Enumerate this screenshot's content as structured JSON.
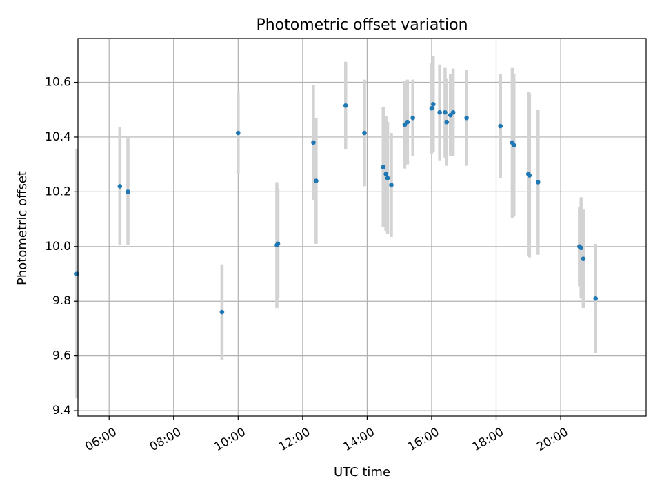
{
  "chart_data": {
    "type": "scatter",
    "title": "Photometric offset variation",
    "xlabel": "UTC time",
    "ylabel": "Photometric offset",
    "x_tick_labels": [
      "06:00",
      "08:00",
      "10:00",
      "12:00",
      "14:00",
      "16:00",
      "18:00",
      "20:00"
    ],
    "y_tick_labels": [
      "9.4",
      "9.6",
      "9.8",
      "10.0",
      "10.2",
      "10.4",
      "10.6"
    ],
    "xlim": [
      "05:02",
      "22:39"
    ],
    "ylim": [
      9.38,
      10.76
    ],
    "grid": true,
    "colors": {
      "marker": "#1f77b4",
      "errorbar": "#d3d3d3",
      "grid": "#b0b0b0"
    },
    "series": [
      {
        "points": [
          {
            "x": "05:00",
            "y": 9.9,
            "err": 0.455
          },
          {
            "x": "06:20",
            "y": 10.22,
            "err": 0.215
          },
          {
            "x": "06:35",
            "y": 10.2,
            "err": 0.195
          },
          {
            "x": "09:30",
            "y": 9.76,
            "err": 0.175
          },
          {
            "x": "10:00",
            "y": 10.415,
            "err": 0.15
          },
          {
            "x": "11:12",
            "y": 10.005,
            "err": 0.23
          },
          {
            "x": "11:14",
            "y": 10.01,
            "err": 0.2
          },
          {
            "x": "12:20",
            "y": 10.38,
            "err": 0.21
          },
          {
            "x": "12:25",
            "y": 10.24,
            "err": 0.23
          },
          {
            "x": "13:20",
            "y": 10.515,
            "err": 0.16
          },
          {
            "x": "13:55",
            "y": 10.415,
            "err": 0.195
          },
          {
            "x": "14:30",
            "y": 10.29,
            "err": 0.22
          },
          {
            "x": "14:35",
            "y": 10.265,
            "err": 0.21
          },
          {
            "x": "14:38",
            "y": 10.25,
            "err": 0.205
          },
          {
            "x": "14:45",
            "y": 10.225,
            "err": 0.19
          },
          {
            "x": "15:10",
            "y": 10.445,
            "err": 0.16
          },
          {
            "x": "15:15",
            "y": 10.455,
            "err": 0.155
          },
          {
            "x": "15:25",
            "y": 10.47,
            "err": 0.14
          },
          {
            "x": "16:00",
            "y": 10.505,
            "err": 0.165
          },
          {
            "x": "16:03",
            "y": 10.52,
            "err": 0.175
          },
          {
            "x": "16:15",
            "y": 10.49,
            "err": 0.175
          },
          {
            "x": "16:25",
            "y": 10.49,
            "err": 0.165
          },
          {
            "x": "16:28",
            "y": 10.455,
            "err": 0.16
          },
          {
            "x": "16:35",
            "y": 10.48,
            "err": 0.15
          },
          {
            "x": "16:40",
            "y": 10.49,
            "err": 0.16
          },
          {
            "x": "17:05",
            "y": 10.47,
            "err": 0.175
          },
          {
            "x": "18:08",
            "y": 10.44,
            "err": 0.19
          },
          {
            "x": "18:30",
            "y": 10.38,
            "err": 0.275
          },
          {
            "x": "18:33",
            "y": 10.37,
            "err": 0.26
          },
          {
            "x": "19:00",
            "y": 10.265,
            "err": 0.3
          },
          {
            "x": "19:02",
            "y": 10.26,
            "err": 0.3
          },
          {
            "x": "19:18",
            "y": 10.235,
            "err": 0.265
          },
          {
            "x": "20:35",
            "y": 10.0,
            "err": 0.145
          },
          {
            "x": "20:38",
            "y": 9.995,
            "err": 0.185
          },
          {
            "x": "20:42",
            "y": 9.955,
            "err": 0.18
          },
          {
            "x": "21:05",
            "y": 9.81,
            "err": 0.2
          }
        ]
      }
    ]
  }
}
